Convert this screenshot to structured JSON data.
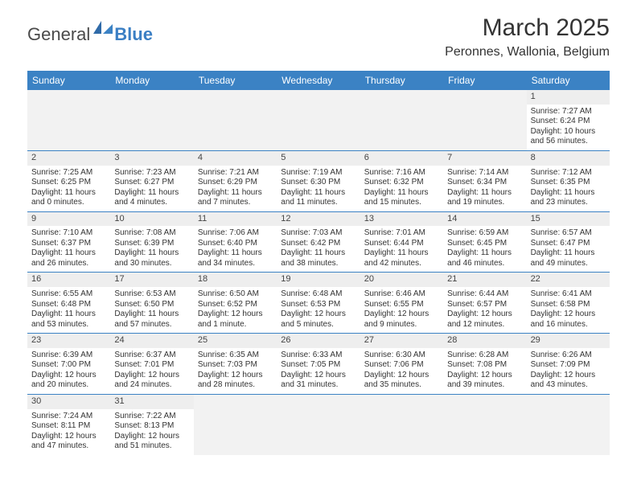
{
  "logo": {
    "text1": "General",
    "text2": "Blue"
  },
  "title": "March 2025",
  "location": "Peronnes, Wallonia, Belgium",
  "colors": {
    "header_bg": "#3b82c4",
    "header_text": "#ffffff",
    "daynum_bg": "#eeeeee",
    "border": "#3b82c4",
    "empty_bg": "#f2f2f2"
  },
  "day_names": [
    "Sunday",
    "Monday",
    "Tuesday",
    "Wednesday",
    "Thursday",
    "Friday",
    "Saturday"
  ],
  "weeks": [
    [
      null,
      null,
      null,
      null,
      null,
      null,
      {
        "n": "1",
        "sr": "Sunrise: 7:27 AM",
        "ss": "Sunset: 6:24 PM",
        "d1": "Daylight: 10 hours",
        "d2": "and 56 minutes."
      }
    ],
    [
      {
        "n": "2",
        "sr": "Sunrise: 7:25 AM",
        "ss": "Sunset: 6:25 PM",
        "d1": "Daylight: 11 hours",
        "d2": "and 0 minutes."
      },
      {
        "n": "3",
        "sr": "Sunrise: 7:23 AM",
        "ss": "Sunset: 6:27 PM",
        "d1": "Daylight: 11 hours",
        "d2": "and 4 minutes."
      },
      {
        "n": "4",
        "sr": "Sunrise: 7:21 AM",
        "ss": "Sunset: 6:29 PM",
        "d1": "Daylight: 11 hours",
        "d2": "and 7 minutes."
      },
      {
        "n": "5",
        "sr": "Sunrise: 7:19 AM",
        "ss": "Sunset: 6:30 PM",
        "d1": "Daylight: 11 hours",
        "d2": "and 11 minutes."
      },
      {
        "n": "6",
        "sr": "Sunrise: 7:16 AM",
        "ss": "Sunset: 6:32 PM",
        "d1": "Daylight: 11 hours",
        "d2": "and 15 minutes."
      },
      {
        "n": "7",
        "sr": "Sunrise: 7:14 AM",
        "ss": "Sunset: 6:34 PM",
        "d1": "Daylight: 11 hours",
        "d2": "and 19 minutes."
      },
      {
        "n": "8",
        "sr": "Sunrise: 7:12 AM",
        "ss": "Sunset: 6:35 PM",
        "d1": "Daylight: 11 hours",
        "d2": "and 23 minutes."
      }
    ],
    [
      {
        "n": "9",
        "sr": "Sunrise: 7:10 AM",
        "ss": "Sunset: 6:37 PM",
        "d1": "Daylight: 11 hours",
        "d2": "and 26 minutes."
      },
      {
        "n": "10",
        "sr": "Sunrise: 7:08 AM",
        "ss": "Sunset: 6:39 PM",
        "d1": "Daylight: 11 hours",
        "d2": "and 30 minutes."
      },
      {
        "n": "11",
        "sr": "Sunrise: 7:06 AM",
        "ss": "Sunset: 6:40 PM",
        "d1": "Daylight: 11 hours",
        "d2": "and 34 minutes."
      },
      {
        "n": "12",
        "sr": "Sunrise: 7:03 AM",
        "ss": "Sunset: 6:42 PM",
        "d1": "Daylight: 11 hours",
        "d2": "and 38 minutes."
      },
      {
        "n": "13",
        "sr": "Sunrise: 7:01 AM",
        "ss": "Sunset: 6:44 PM",
        "d1": "Daylight: 11 hours",
        "d2": "and 42 minutes."
      },
      {
        "n": "14",
        "sr": "Sunrise: 6:59 AM",
        "ss": "Sunset: 6:45 PM",
        "d1": "Daylight: 11 hours",
        "d2": "and 46 minutes."
      },
      {
        "n": "15",
        "sr": "Sunrise: 6:57 AM",
        "ss": "Sunset: 6:47 PM",
        "d1": "Daylight: 11 hours",
        "d2": "and 49 minutes."
      }
    ],
    [
      {
        "n": "16",
        "sr": "Sunrise: 6:55 AM",
        "ss": "Sunset: 6:48 PM",
        "d1": "Daylight: 11 hours",
        "d2": "and 53 minutes."
      },
      {
        "n": "17",
        "sr": "Sunrise: 6:53 AM",
        "ss": "Sunset: 6:50 PM",
        "d1": "Daylight: 11 hours",
        "d2": "and 57 minutes."
      },
      {
        "n": "18",
        "sr": "Sunrise: 6:50 AM",
        "ss": "Sunset: 6:52 PM",
        "d1": "Daylight: 12 hours",
        "d2": "and 1 minute."
      },
      {
        "n": "19",
        "sr": "Sunrise: 6:48 AM",
        "ss": "Sunset: 6:53 PM",
        "d1": "Daylight: 12 hours",
        "d2": "and 5 minutes."
      },
      {
        "n": "20",
        "sr": "Sunrise: 6:46 AM",
        "ss": "Sunset: 6:55 PM",
        "d1": "Daylight: 12 hours",
        "d2": "and 9 minutes."
      },
      {
        "n": "21",
        "sr": "Sunrise: 6:44 AM",
        "ss": "Sunset: 6:57 PM",
        "d1": "Daylight: 12 hours",
        "d2": "and 12 minutes."
      },
      {
        "n": "22",
        "sr": "Sunrise: 6:41 AM",
        "ss": "Sunset: 6:58 PM",
        "d1": "Daylight: 12 hours",
        "d2": "and 16 minutes."
      }
    ],
    [
      {
        "n": "23",
        "sr": "Sunrise: 6:39 AM",
        "ss": "Sunset: 7:00 PM",
        "d1": "Daylight: 12 hours",
        "d2": "and 20 minutes."
      },
      {
        "n": "24",
        "sr": "Sunrise: 6:37 AM",
        "ss": "Sunset: 7:01 PM",
        "d1": "Daylight: 12 hours",
        "d2": "and 24 minutes."
      },
      {
        "n": "25",
        "sr": "Sunrise: 6:35 AM",
        "ss": "Sunset: 7:03 PM",
        "d1": "Daylight: 12 hours",
        "d2": "and 28 minutes."
      },
      {
        "n": "26",
        "sr": "Sunrise: 6:33 AM",
        "ss": "Sunset: 7:05 PM",
        "d1": "Daylight: 12 hours",
        "d2": "and 31 minutes."
      },
      {
        "n": "27",
        "sr": "Sunrise: 6:30 AM",
        "ss": "Sunset: 7:06 PM",
        "d1": "Daylight: 12 hours",
        "d2": "and 35 minutes."
      },
      {
        "n": "28",
        "sr": "Sunrise: 6:28 AM",
        "ss": "Sunset: 7:08 PM",
        "d1": "Daylight: 12 hours",
        "d2": "and 39 minutes."
      },
      {
        "n": "29",
        "sr": "Sunrise: 6:26 AM",
        "ss": "Sunset: 7:09 PM",
        "d1": "Daylight: 12 hours",
        "d2": "and 43 minutes."
      }
    ],
    [
      {
        "n": "30",
        "sr": "Sunrise: 7:24 AM",
        "ss": "Sunset: 8:11 PM",
        "d1": "Daylight: 12 hours",
        "d2": "and 47 minutes."
      },
      {
        "n": "31",
        "sr": "Sunrise: 7:22 AM",
        "ss": "Sunset: 8:13 PM",
        "d1": "Daylight: 12 hours",
        "d2": "and 51 minutes."
      },
      null,
      null,
      null,
      null,
      null
    ]
  ]
}
